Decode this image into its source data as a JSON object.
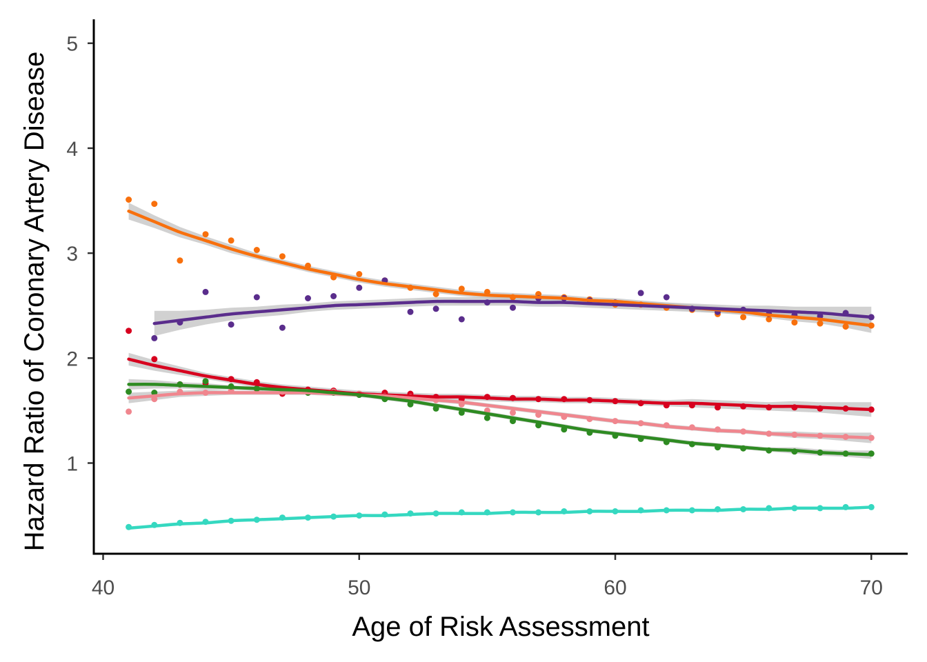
{
  "chart_data": {
    "type": "scatter",
    "title": "",
    "xlabel": "Age of Risk Assessment",
    "ylabel": "Hazard Ratio of Coronary Artery Disease",
    "xlim": [
      39.5,
      71.5
    ],
    "ylim": [
      0.2,
      5.2
    ],
    "xticks": [
      40,
      50,
      60,
      70
    ],
    "yticks": [
      1,
      2,
      3,
      4,
      5
    ],
    "grid": false,
    "legend": "none",
    "smooth": "loess with confidence ribbon",
    "series": [
      {
        "color": "#F8700D",
        "x": [
          41,
          42,
          43,
          44,
          45,
          46,
          47,
          48,
          49,
          50,
          51,
          52,
          53,
          54,
          55,
          56,
          57,
          58,
          59,
          60,
          61,
          62,
          63,
          64,
          65,
          66,
          67,
          68,
          69,
          70
        ],
        "y": [
          3.51,
          3.47,
          2.93,
          3.18,
          3.12,
          3.03,
          2.97,
          2.88,
          2.77,
          2.8,
          2.74,
          2.67,
          2.61,
          2.66,
          2.63,
          2.58,
          2.61,
          2.58,
          2.56,
          2.51,
          2.51,
          2.48,
          2.46,
          2.42,
          2.39,
          2.37,
          2.34,
          2.33,
          2.3,
          2.31
        ],
        "fit": [
          3.4,
          3.3,
          3.2,
          3.12,
          3.04,
          2.97,
          2.91,
          2.85,
          2.8,
          2.75,
          2.71,
          2.68,
          2.65,
          2.62,
          2.6,
          2.59,
          2.58,
          2.57,
          2.55,
          2.54,
          2.52,
          2.5,
          2.48,
          2.46,
          2.44,
          2.41,
          2.39,
          2.37,
          2.34,
          2.31
        ],
        "ribbon": [
          0.08,
          0.06,
          0.05,
          0.04,
          0.04,
          0.03,
          0.03,
          0.03,
          0.03,
          0.03,
          0.03,
          0.03,
          0.03,
          0.03,
          0.03,
          0.03,
          0.03,
          0.03,
          0.03,
          0.03,
          0.03,
          0.03,
          0.03,
          0.03,
          0.03,
          0.03,
          0.04,
          0.04,
          0.05,
          0.07
        ]
      },
      {
        "color": "#5A2D8C",
        "x": [
          42,
          43,
          44,
          45,
          46,
          47,
          48,
          49,
          50,
          51,
          52,
          53,
          54,
          55,
          56,
          57,
          58,
          59,
          60,
          61,
          62,
          63,
          64,
          65,
          66,
          67,
          68,
          69,
          70
        ],
        "y": [
          2.19,
          2.34,
          2.63,
          2.32,
          2.58,
          2.29,
          2.57,
          2.59,
          2.67,
          2.74,
          2.44,
          2.47,
          2.37,
          2.53,
          2.48,
          2.57,
          2.57,
          2.55,
          2.53,
          2.62,
          2.58,
          2.47,
          2.44,
          2.46,
          2.42,
          2.41,
          2.4,
          2.43,
          2.39
        ],
        "fit": [
          2.33,
          2.36,
          2.39,
          2.42,
          2.44,
          2.46,
          2.48,
          2.5,
          2.51,
          2.52,
          2.53,
          2.54,
          2.54,
          2.54,
          2.54,
          2.53,
          2.53,
          2.52,
          2.51,
          2.5,
          2.49,
          2.48,
          2.47,
          2.46,
          2.45,
          2.44,
          2.43,
          2.41,
          2.39
        ],
        "ribbon": [
          0.12,
          0.09,
          0.07,
          0.06,
          0.05,
          0.05,
          0.04,
          0.04,
          0.04,
          0.04,
          0.04,
          0.04,
          0.04,
          0.04,
          0.04,
          0.04,
          0.04,
          0.04,
          0.04,
          0.04,
          0.04,
          0.04,
          0.04,
          0.04,
          0.05,
          0.05,
          0.06,
          0.08,
          0.1
        ]
      },
      {
        "color": "#D7001E",
        "x": [
          41,
          42,
          43,
          44,
          45,
          46,
          47,
          48,
          49,
          50,
          51,
          52,
          53,
          54,
          55,
          56,
          57,
          58,
          59,
          60,
          61,
          62,
          63,
          64,
          65,
          66,
          67,
          68,
          69,
          70
        ],
        "y": [
          2.26,
          1.99,
          1.75,
          1.76,
          1.8,
          1.77,
          1.66,
          1.7,
          1.69,
          1.66,
          1.67,
          1.66,
          1.63,
          1.61,
          1.63,
          1.62,
          1.61,
          1.61,
          1.6,
          1.59,
          1.57,
          1.55,
          1.55,
          1.53,
          1.54,
          1.53,
          1.53,
          1.52,
          1.52,
          1.51
        ],
        "fit": [
          1.99,
          1.93,
          1.88,
          1.83,
          1.79,
          1.75,
          1.72,
          1.7,
          1.68,
          1.66,
          1.65,
          1.64,
          1.63,
          1.63,
          1.62,
          1.61,
          1.61,
          1.6,
          1.6,
          1.59,
          1.58,
          1.57,
          1.57,
          1.56,
          1.55,
          1.54,
          1.54,
          1.53,
          1.52,
          1.51
        ],
        "ribbon": [
          0.06,
          0.05,
          0.04,
          0.03,
          0.03,
          0.03,
          0.03,
          0.03,
          0.03,
          0.03,
          0.03,
          0.03,
          0.03,
          0.03,
          0.03,
          0.03,
          0.03,
          0.03,
          0.03,
          0.03,
          0.03,
          0.03,
          0.04,
          0.04,
          0.04,
          0.04,
          0.05,
          0.05,
          0.06,
          0.07
        ]
      },
      {
        "color": "#F0868E",
        "x": [
          41,
          42,
          43,
          44,
          45,
          46,
          47,
          48,
          49,
          50,
          51,
          52,
          53,
          54,
          55,
          56,
          57,
          58,
          59,
          60,
          61,
          62,
          63,
          64,
          65,
          66,
          67,
          68,
          69,
          70
        ],
        "y": [
          1.49,
          1.61,
          1.68,
          1.67,
          1.69,
          1.7,
          1.68,
          1.67,
          1.68,
          1.66,
          1.64,
          1.63,
          1.6,
          1.56,
          1.5,
          1.48,
          1.46,
          1.44,
          1.42,
          1.4,
          1.38,
          1.36,
          1.34,
          1.32,
          1.3,
          1.28,
          1.27,
          1.26,
          1.25,
          1.24
        ],
        "fit": [
          1.62,
          1.64,
          1.66,
          1.67,
          1.67,
          1.67,
          1.67,
          1.67,
          1.66,
          1.65,
          1.64,
          1.62,
          1.6,
          1.58,
          1.55,
          1.52,
          1.49,
          1.46,
          1.43,
          1.4,
          1.38,
          1.35,
          1.33,
          1.31,
          1.3,
          1.28,
          1.27,
          1.26,
          1.25,
          1.24
        ],
        "ribbon": [
          0.05,
          0.04,
          0.03,
          0.03,
          0.02,
          0.02,
          0.02,
          0.02,
          0.02,
          0.02,
          0.02,
          0.02,
          0.02,
          0.02,
          0.02,
          0.02,
          0.02,
          0.02,
          0.02,
          0.02,
          0.02,
          0.02,
          0.02,
          0.02,
          0.02,
          0.02,
          0.03,
          0.03,
          0.04,
          0.05
        ]
      },
      {
        "color": "#2E8B22",
        "x": [
          41,
          42,
          43,
          44,
          45,
          46,
          47,
          48,
          49,
          50,
          51,
          52,
          53,
          54,
          55,
          56,
          57,
          58,
          59,
          60,
          61,
          62,
          63,
          64,
          65,
          66,
          67,
          68,
          69,
          70
        ],
        "y": [
          1.68,
          1.67,
          1.75,
          1.78,
          1.73,
          1.71,
          1.7,
          1.67,
          1.67,
          1.65,
          1.61,
          1.56,
          1.52,
          1.48,
          1.43,
          1.4,
          1.36,
          1.32,
          1.29,
          1.26,
          1.23,
          1.2,
          1.18,
          1.15,
          1.14,
          1.12,
          1.11,
          1.1,
          1.09,
          1.09
        ],
        "fit": [
          1.75,
          1.75,
          1.74,
          1.73,
          1.72,
          1.71,
          1.7,
          1.69,
          1.67,
          1.65,
          1.62,
          1.59,
          1.55,
          1.51,
          1.47,
          1.43,
          1.39,
          1.35,
          1.31,
          1.28,
          1.25,
          1.22,
          1.19,
          1.17,
          1.15,
          1.13,
          1.12,
          1.1,
          1.09,
          1.08
        ],
        "ribbon": [
          0.05,
          0.04,
          0.03,
          0.03,
          0.02,
          0.02,
          0.02,
          0.02,
          0.02,
          0.02,
          0.02,
          0.02,
          0.02,
          0.02,
          0.02,
          0.02,
          0.02,
          0.02,
          0.02,
          0.02,
          0.02,
          0.02,
          0.02,
          0.02,
          0.02,
          0.02,
          0.03,
          0.03,
          0.03,
          0.04
        ]
      },
      {
        "color": "#35D8C0",
        "x": [
          41,
          42,
          43,
          44,
          45,
          46,
          47,
          48,
          49,
          50,
          51,
          52,
          53,
          54,
          55,
          56,
          57,
          58,
          59,
          60,
          61,
          62,
          63,
          64,
          65,
          66,
          67,
          68,
          69,
          70
        ],
        "y": [
          0.39,
          0.41,
          0.43,
          0.44,
          0.45,
          0.46,
          0.48,
          0.48,
          0.49,
          0.5,
          0.51,
          0.52,
          0.52,
          0.53,
          0.53,
          0.53,
          0.53,
          0.54,
          0.54,
          0.54,
          0.55,
          0.55,
          0.55,
          0.56,
          0.56,
          0.57,
          0.57,
          0.57,
          0.58,
          0.58
        ],
        "fit": [
          0.38,
          0.4,
          0.42,
          0.43,
          0.45,
          0.46,
          0.47,
          0.48,
          0.49,
          0.5,
          0.5,
          0.51,
          0.52,
          0.52,
          0.52,
          0.53,
          0.53,
          0.53,
          0.54,
          0.54,
          0.54,
          0.55,
          0.55,
          0.55,
          0.56,
          0.56,
          0.57,
          0.57,
          0.57,
          0.58
        ],
        "ribbon": [
          0.01,
          0.01,
          0.01,
          0.01,
          0.01,
          0.01,
          0.01,
          0.01,
          0.01,
          0.01,
          0.01,
          0.01,
          0.01,
          0.01,
          0.01,
          0.01,
          0.01,
          0.01,
          0.01,
          0.01,
          0.01,
          0.01,
          0.01,
          0.01,
          0.01,
          0.01,
          0.01,
          0.01,
          0.01,
          0.01
        ]
      }
    ]
  }
}
